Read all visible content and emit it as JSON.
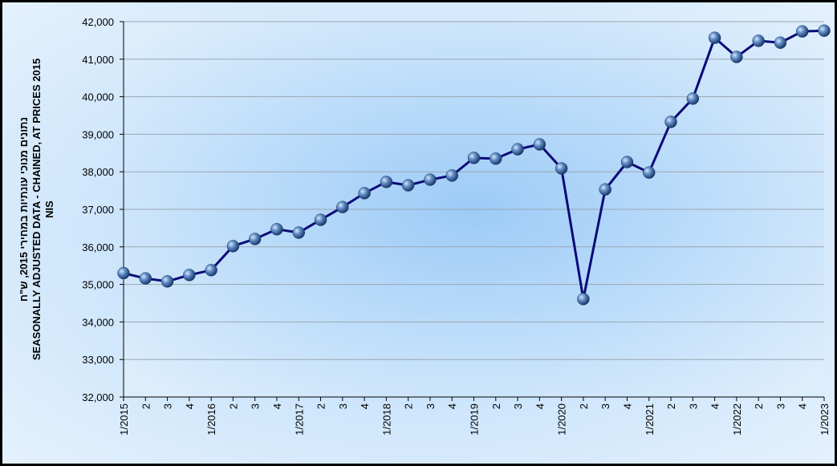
{
  "chart_data": {
    "type": "line",
    "y_label": [
      "נתונים מנוכי עונתיות במחירי 2015, ש\"ח",
      "SEASONALLY ADJUSTED DATA - CHAINED, AT PRICES 2015",
      "NIS"
    ],
    "categories": [
      "1/2015",
      "2",
      "3",
      "4",
      "1/2016",
      "2",
      "3",
      "4",
      "1/2017",
      "2",
      "3",
      "4",
      "1/2018",
      "2",
      "3",
      "4",
      "1/2019",
      "2",
      "3",
      "4",
      "1/2020",
      "2",
      "3",
      "4",
      "1/2021",
      "2",
      "3",
      "4",
      "1/2022",
      "2",
      "3",
      "4",
      "1/2023"
    ],
    "series": [
      {
        "color": "#0a0a78",
        "values": [
          35300,
          35160,
          35080,
          35250,
          35380,
          36020,
          36210,
          36470,
          36380,
          36720,
          37060,
          37430,
          37730,
          37640,
          37790,
          37900,
          38370,
          38350,
          38600,
          38730,
          38090,
          34610,
          37530,
          38260,
          37980,
          39330,
          39950,
          41570,
          41060,
          41490,
          41440,
          41740,
          41760
        ]
      }
    ],
    "ylim": [
      32000,
      42000
    ],
    "yticks": [
      {
        "value": 32000,
        "label": "32,000"
      },
      {
        "value": 33000,
        "label": "33,000"
      },
      {
        "value": 34000,
        "label": "34,000"
      },
      {
        "value": 35000,
        "label": "35,000"
      },
      {
        "value": 36000,
        "label": "36,000"
      },
      {
        "value": 37000,
        "label": "37,000"
      },
      {
        "value": 38000,
        "label": "38,000"
      },
      {
        "value": 39000,
        "label": "39,000"
      },
      {
        "value": 40000,
        "label": "40,000"
      },
      {
        "value": 41000,
        "label": "41,000"
      },
      {
        "value": 42000,
        "label": "42,000"
      }
    ],
    "grid": true
  }
}
